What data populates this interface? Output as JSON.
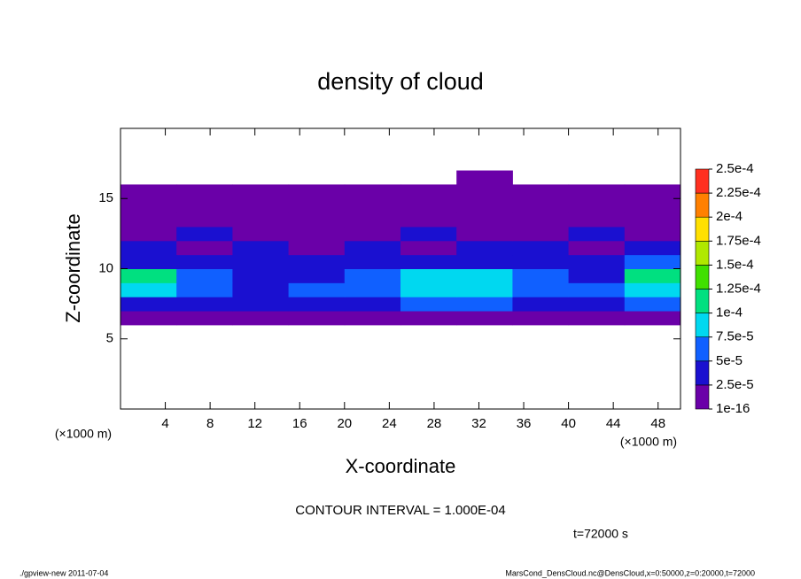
{
  "chart_data": {
    "type": "contour",
    "title": "density of cloud",
    "xlabel": "X-coordinate",
    "ylabel": "Z-coordinate",
    "xunit": "(×1000 m)",
    "yunit": "(×1000 m)",
    "annotation": "CONTOUR INTERVAL = 1.000E-04",
    "time": "t=72000 s",
    "footer_left": "./gpview-new   2011-07-04",
    "footer_right": "MarsCond_DensCloud.nc@DensCloud,x=0:50000,z=0:20000,t=72000",
    "xlim": [
      0,
      50
    ],
    "ylim": [
      0,
      20
    ],
    "xticks": [
      4,
      8,
      12,
      16,
      20,
      24,
      28,
      32,
      36,
      40,
      44,
      48
    ],
    "yticks": [
      5,
      10,
      15
    ],
    "x": [
      2.5,
      7.5,
      12.5,
      17.5,
      22.5,
      27.5,
      32.5,
      37.5,
      42.5,
      47.5
    ],
    "y": [
      6.5,
      7.5,
      8.5,
      9.5,
      10.5,
      11.5,
      12.5,
      13.5,
      14.5,
      15.5,
      16.5
    ],
    "z": [
      [
        1e-05,
        1e-05,
        1e-05,
        1e-05,
        1e-05,
        1e-05,
        1e-05,
        1e-05,
        1e-05,
        1e-05
      ],
      [
        4e-05,
        4e-05,
        3e-05,
        3e-05,
        4e-05,
        5e-05,
        5e-05,
        4e-05,
        3e-05,
        5e-05
      ],
      [
        8e-05,
        6e-05,
        4e-05,
        5e-05,
        7e-05,
        8e-05,
        8e-05,
        6e-05,
        5e-05,
        8e-05
      ],
      [
        0.000105,
        6e-05,
        4e-05,
        4e-05,
        6e-05,
        7.6e-05,
        8e-05,
        6e-05,
        4e-05,
        0.000105
      ],
      [
        4e-05,
        3e-05,
        3e-05,
        2.6e-05,
        3e-05,
        4e-05,
        4e-05,
        3e-05,
        3e-05,
        5e-05
      ],
      [
        2.6e-05,
        2e-05,
        2.6e-05,
        2e-05,
        2.6e-05,
        2e-05,
        2.6e-05,
        2.6e-05,
        2e-05,
        2.6e-05
      ],
      [
        2e-05,
        2.6e-05,
        2e-05,
        2e-05,
        2e-05,
        2.6e-05,
        2e-05,
        2e-05,
        2.6e-05,
        2e-05
      ],
      [
        1.5e-05,
        1.5e-05,
        1.5e-05,
        1.5e-05,
        1.5e-05,
        1.5e-05,
        1.5e-05,
        1.5e-05,
        1.5e-05,
        1.5e-05
      ],
      [
        1e-05,
        1e-05,
        1e-05,
        1e-05,
        1e-05,
        1e-05,
        1e-05,
        1e-05,
        1e-05,
        1e-05
      ],
      [
        5e-06,
        5e-06,
        5e-06,
        5e-06,
        5e-06,
        5e-06,
        5e-06,
        5e-06,
        5e-06,
        5e-06
      ],
      [
        null,
        null,
        null,
        null,
        null,
        null,
        5e-06,
        null,
        null,
        null
      ]
    ],
    "levels": [
      {
        "value": 1e-16,
        "label": "1e-16"
      },
      {
        "value": 2.5e-05,
        "label": "2.5e-5"
      },
      {
        "value": 5e-05,
        "label": "5e-5"
      },
      {
        "value": 7.5e-05,
        "label": "7.5e-5"
      },
      {
        "value": 0.0001,
        "label": "1e-4"
      },
      {
        "value": 0.000125,
        "label": "1.25e-4"
      },
      {
        "value": 0.00015,
        "label": "1.5e-4"
      },
      {
        "value": 0.000175,
        "label": "1.75e-4"
      },
      {
        "value": 0.0002,
        "label": "2e-4"
      },
      {
        "value": 0.000225,
        "label": "2.25e-4"
      },
      {
        "value": 0.00025,
        "label": "2.5e-4"
      }
    ],
    "colors": [
      "#6a00a8",
      "#1a10d0",
      "#1060ff",
      "#00d8f0",
      "#00e080",
      "#40e000",
      "#b0e800",
      "#ffe000",
      "#ff8000",
      "#ff3020"
    ]
  }
}
